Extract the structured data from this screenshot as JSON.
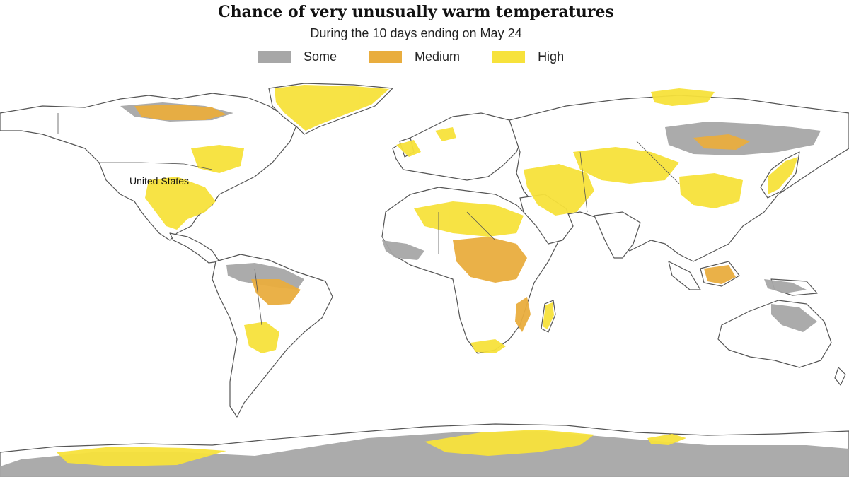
{
  "title": "Chance of very unusually warm temperatures",
  "subtitle": "During the 10 days ending on May 24",
  "legend": [
    {
      "label": "Some",
      "color": "#a7a7a7"
    },
    {
      "label": "Medium",
      "color": "#e9ad3e"
    },
    {
      "label": "High",
      "color": "#f7e23b"
    }
  ],
  "map": {
    "projection": "world equirectangular",
    "ocean_color": "#ffffff",
    "border_color": "#555555",
    "label_us": "United States",
    "regions": [
      {
        "name": "greenland",
        "level": "High"
      },
      {
        "name": "canada-north",
        "level": "Medium"
      },
      {
        "name": "canada-east",
        "level": "High"
      },
      {
        "name": "united-states-east-mexico",
        "level": "High"
      },
      {
        "name": "amazon",
        "level": "Medium"
      },
      {
        "name": "south-america-south",
        "level": "High"
      },
      {
        "name": "sahel-africa",
        "level": "High"
      },
      {
        "name": "east-africa",
        "level": "Medium"
      },
      {
        "name": "middle-east",
        "level": "High"
      },
      {
        "name": "central-asia",
        "level": "High"
      },
      {
        "name": "siberia",
        "level": "Some"
      },
      {
        "name": "china-east",
        "level": "High"
      },
      {
        "name": "japan",
        "level": "High"
      },
      {
        "name": "borneo",
        "level": "Medium"
      },
      {
        "name": "madagascar",
        "level": "High"
      },
      {
        "name": "australia-east",
        "level": "Some"
      },
      {
        "name": "antarctica",
        "level": "High"
      }
    ]
  }
}
